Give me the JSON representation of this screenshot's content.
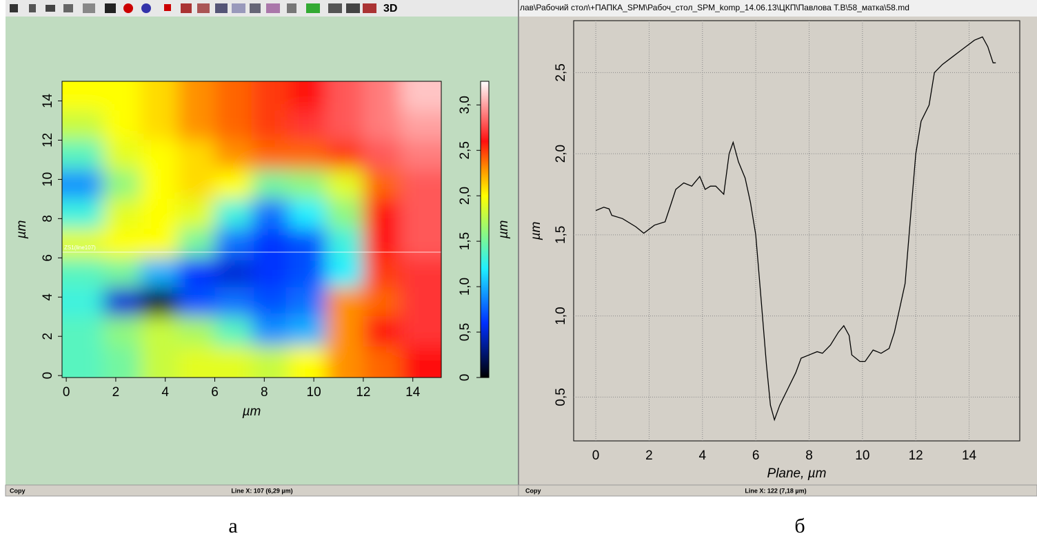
{
  "ui": {
    "toolbar_label": "3D",
    "window_title": "лав\\Рабочий стол\\+ПАПКА_SPM\\Рабоч_стол_SPM_komp_14.06.13\\ЦКП\\Павлова Т.В\\58_матка\\58.md",
    "left_status": {
      "left": "Copy",
      "center": "Line X: 107 (6,29 µm)"
    },
    "right_status": {
      "left": "Copy",
      "center": "Line X: 122 (7,18 µm)"
    },
    "caption_left": "а",
    "caption_right": "б"
  },
  "chart_data": [
    {
      "type": "heatmap",
      "x_label": "µm",
      "y_label": "µm",
      "colorbar_label": "µm",
      "annotation": "ZS1(line107)",
      "cut_line_y": 6.29,
      "x": [
        0.75,
        2.25,
        3.75,
        5.25,
        6.75,
        8.25,
        9.75,
        11.25,
        12.75,
        14.25
      ],
      "y": [
        14.25,
        12.75,
        11.25,
        9.75,
        8.25,
        6.75,
        5.25,
        3.75,
        2.25,
        0.75
      ],
      "z": [
        [
          2.0,
          2.0,
          2.1,
          2.3,
          2.4,
          2.5,
          2.6,
          2.8,
          2.9,
          3.1
        ],
        [
          1.8,
          2.0,
          2.1,
          2.3,
          2.4,
          2.5,
          2.7,
          2.8,
          2.9,
          3.0
        ],
        [
          1.4,
          1.9,
          2.0,
          2.1,
          2.3,
          2.4,
          2.4,
          2.5,
          2.8,
          2.9
        ],
        [
          0.9,
          1.6,
          2.0,
          2.1,
          2.0,
          1.5,
          1.6,
          1.9,
          2.4,
          2.8
        ],
        [
          1.3,
          1.9,
          2.0,
          1.9,
          1.3,
          0.8,
          1.2,
          1.6,
          2.6,
          2.8
        ],
        [
          1.9,
          2.0,
          2.0,
          1.5,
          0.8,
          0.6,
          0.7,
          1.3,
          2.6,
          2.8
        ],
        [
          1.4,
          1.5,
          1.0,
          0.6,
          0.5,
          0.6,
          0.7,
          1.2,
          2.5,
          2.7
        ],
        [
          1.3,
          0.5,
          0.1,
          0.7,
          0.8,
          0.7,
          0.8,
          2.3,
          2.4,
          2.7
        ],
        [
          1.4,
          1.6,
          1.8,
          1.7,
          1.4,
          0.9,
          1.0,
          2.3,
          2.6,
          2.7
        ],
        [
          1.4,
          1.5,
          1.8,
          1.9,
          1.9,
          1.8,
          2.0,
          2.3,
          2.4,
          2.6
        ]
      ],
      "xlim": [
        -0.17,
        15.15
      ],
      "ylim": [
        -0.1,
        15.0
      ],
      "xticks": [
        0,
        2,
        4,
        6,
        8,
        10,
        12,
        14
      ],
      "yticks": [
        0,
        2,
        4,
        6,
        8,
        10,
        12,
        14
      ],
      "colorscale": [
        [
          0,
          "#000000"
        ],
        [
          0.6,
          "#0030ff"
        ],
        [
          1.2,
          "#20f0ff"
        ],
        [
          2.0,
          "#ffff00"
        ],
        [
          2.3,
          "#ff9000"
        ],
        [
          2.6,
          "#ff1010"
        ],
        [
          3.26,
          "#ffffff"
        ]
      ],
      "clim": [
        0,
        3.26
      ],
      "cticks": [
        0,
        {
          "value": 0.5,
          "label": "0,5"
        },
        {
          "value": 1.0,
          "label": "1,0"
        },
        {
          "value": 1.5,
          "label": "1,5"
        },
        {
          "value": 2.0,
          "label": "2,0"
        },
        {
          "value": 2.5,
          "label": "2,5"
        },
        {
          "value": 3.0,
          "label": "3,0"
        }
      ]
    },
    {
      "type": "line",
      "x_label": "Plane, µm",
      "y_label": "µm",
      "color": "#000000",
      "grid": true,
      "x": [
        0,
        0.3,
        0.5,
        0.6,
        1,
        1.5,
        1.8,
        2.2,
        2.6,
        2.8,
        3,
        3.3,
        3.6,
        3.9,
        4.1,
        4.3,
        4.5,
        4.8,
        5.0,
        5.15,
        5.35,
        5.6,
        5.8,
        6.0,
        6.2,
        6.4,
        6.55,
        6.7,
        6.9,
        7.2,
        7.5,
        7.7,
        8,
        8.3,
        8.5,
        8.8,
        9.1,
        9.3,
        9.5,
        9.6,
        9.9,
        10.1,
        10.4,
        10.7,
        11.0,
        11.2,
        11.4,
        11.6,
        11.8,
        12.0,
        12.2,
        12.5,
        12.7,
        13.0,
        13.4,
        13.8,
        14.2,
        14.5,
        14.7,
        14.9,
        15
      ],
      "values": [
        1.65,
        1.67,
        1.66,
        1.62,
        1.6,
        1.55,
        1.51,
        1.56,
        1.58,
        1.68,
        1.78,
        1.82,
        1.8,
        1.86,
        1.78,
        1.8,
        1.8,
        1.75,
        2.0,
        2.07,
        1.95,
        1.85,
        1.7,
        1.5,
        1.1,
        0.7,
        0.45,
        0.36,
        0.45,
        0.55,
        0.65,
        0.74,
        0.76,
        0.78,
        0.77,
        0.82,
        0.9,
        0.94,
        0.88,
        0.76,
        0.72,
        0.72,
        0.79,
        0.77,
        0.8,
        0.9,
        1.05,
        1.2,
        1.6,
        2.0,
        2.2,
        2.3,
        2.5,
        2.55,
        2.6,
        2.65,
        2.7,
        2.72,
        2.66,
        2.56,
        2.56
      ],
      "xlim": [
        -0.83,
        15.9
      ],
      "ylim": [
        0.23,
        2.82
      ],
      "xticks": [
        0,
        2,
        4,
        6,
        8,
        10,
        12,
        14
      ],
      "yticks": [
        {
          "value": 0.5,
          "label": "0,5"
        },
        {
          "value": 1.0,
          "label": "1,0"
        },
        {
          "value": 1.5,
          "label": "1,5"
        },
        {
          "value": 2.0,
          "label": "2,0"
        },
        {
          "value": 2.5,
          "label": "2,5"
        }
      ]
    }
  ]
}
